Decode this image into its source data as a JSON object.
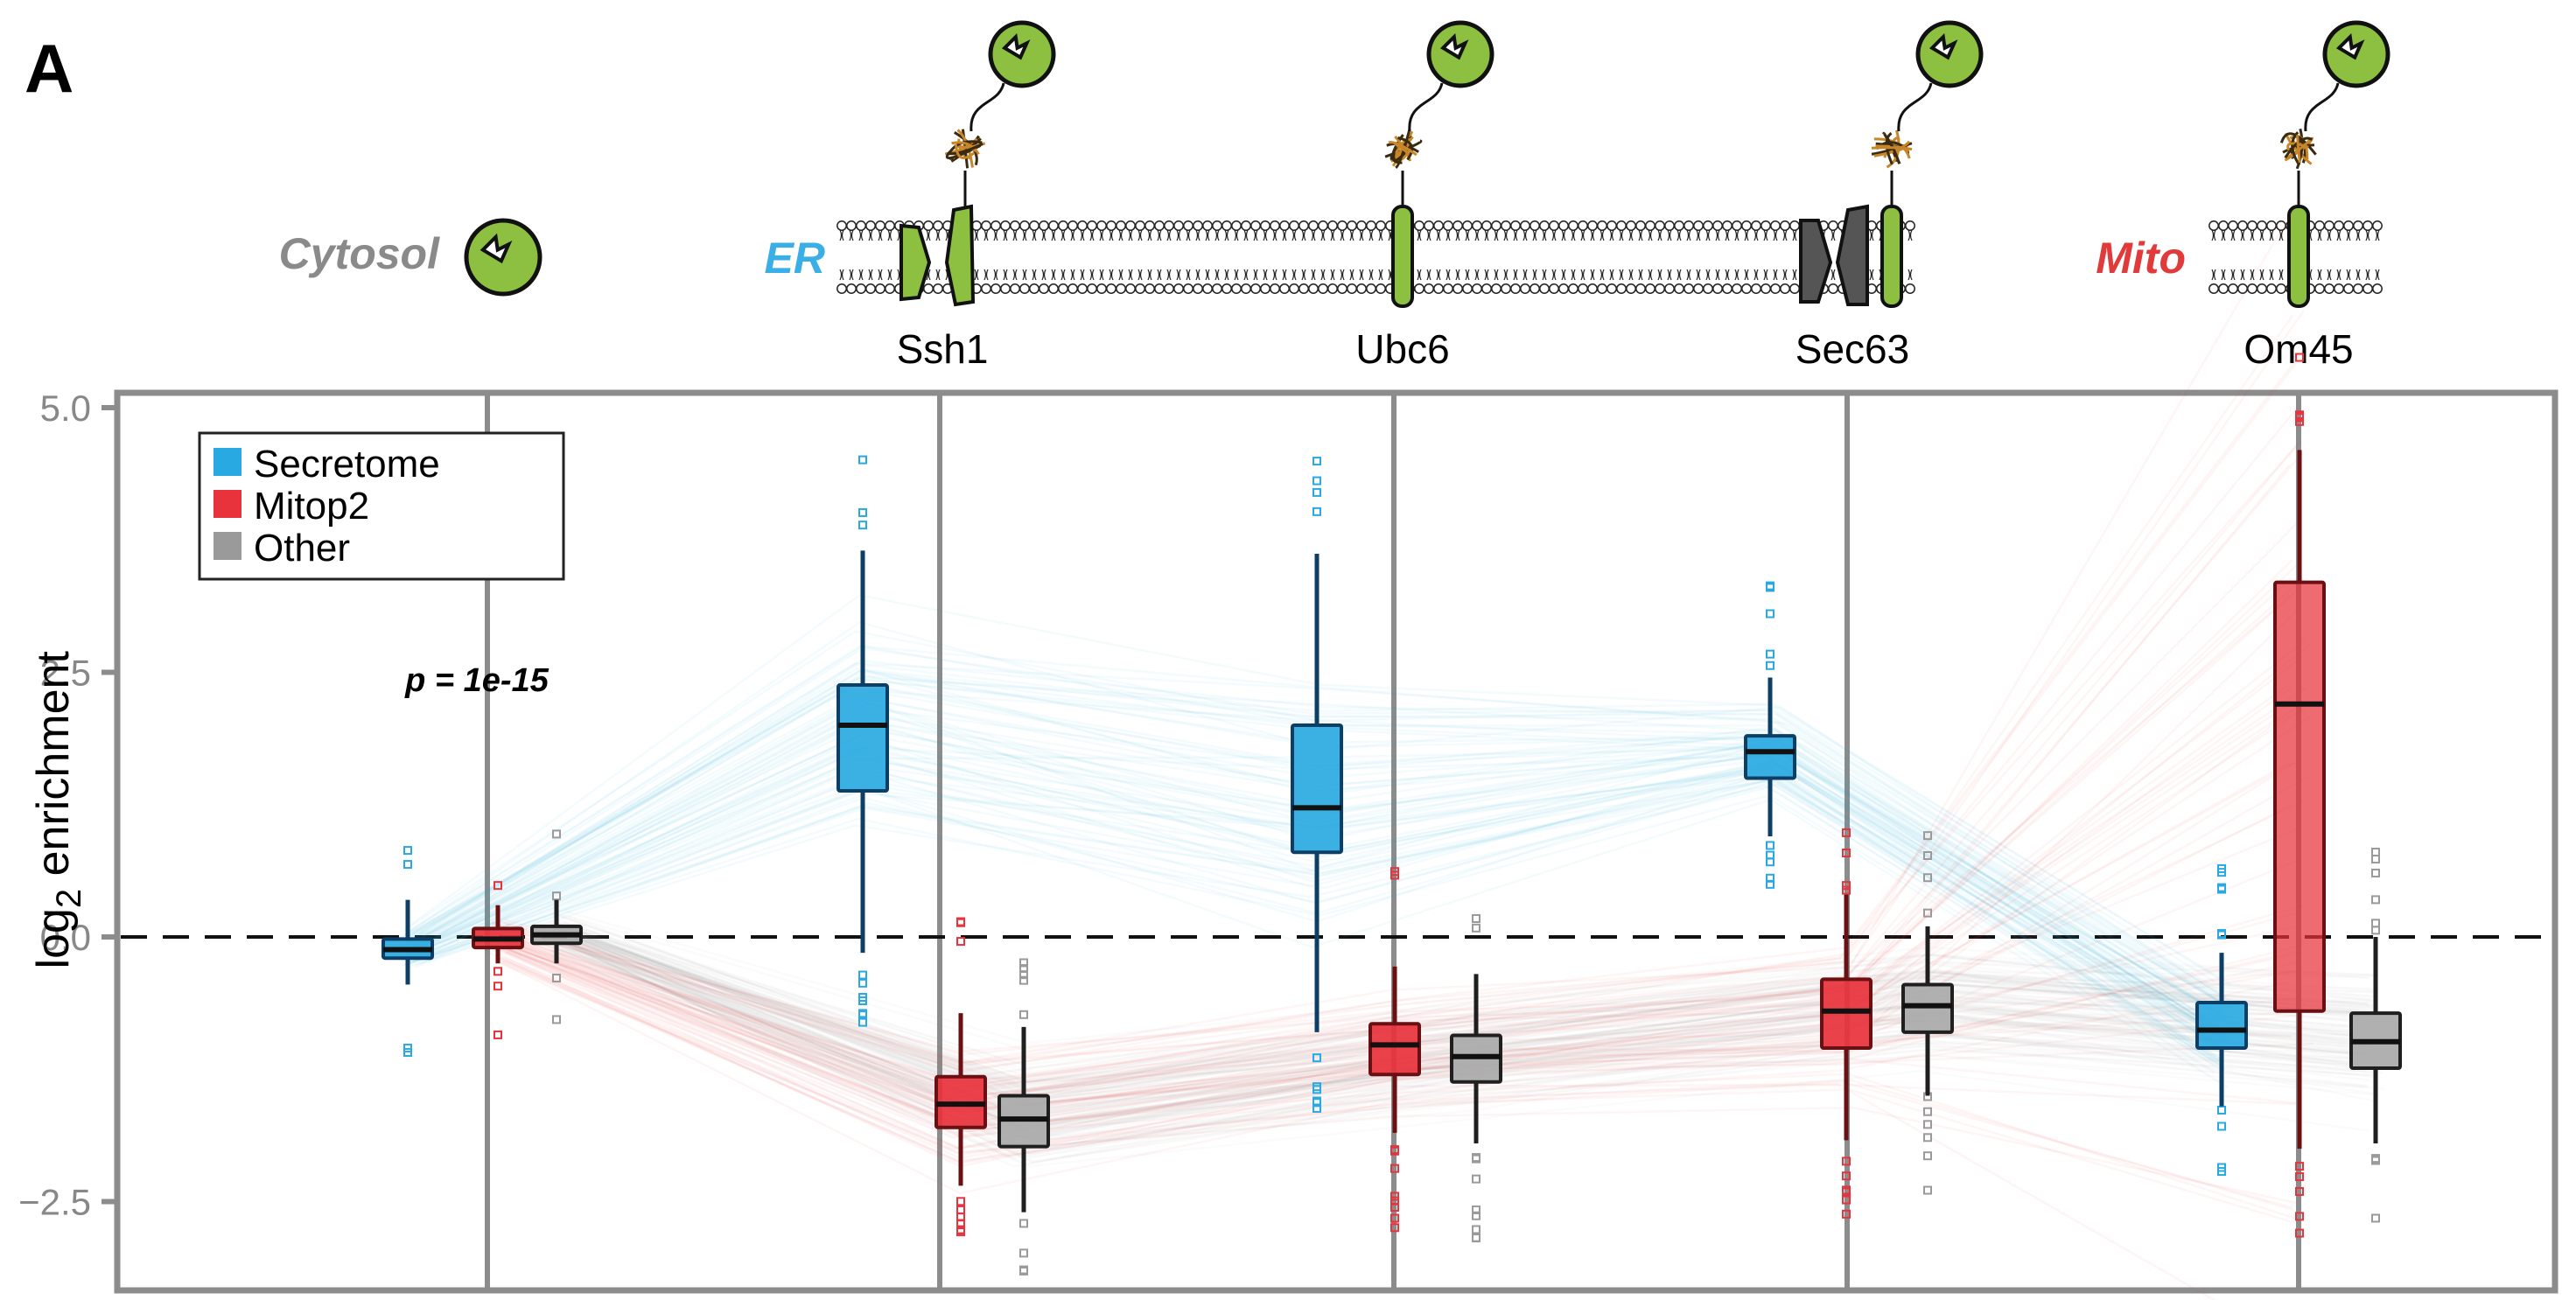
{
  "panel_label": "A",
  "compartments": [
    {
      "name": "Cytosol",
      "color": "#8a8a8a"
    },
    {
      "name": "ER",
      "color": "#3aaee6"
    },
    {
      "name": "Mito",
      "color": "#e03a3a"
    }
  ],
  "proteins": [
    "Ssh1",
    "Ubc6",
    "Sec63",
    "Om45"
  ],
  "colors": {
    "secretome": "#29a9e1",
    "mitop2": "#e8323c",
    "other": "#9a9a9a",
    "tm_green": "#8dc040",
    "tm_dark": "#555555",
    "biotin_ligase": "#8dc040"
  },
  "chart_data": {
    "type": "box",
    "ylabel_main": "log",
    "ylabel_sub": "2",
    "ylabel_rest": " enrichment",
    "ylim": [
      -3.4,
      5.0
    ],
    "yticks": [
      5.0,
      2.5,
      0.0,
      -2.5
    ],
    "ytick_labels": [
      "5.0",
      "2.5",
      "0.0",
      "−2.5"
    ],
    "baseline": 0.0,
    "positions": [
      "Cytosol",
      "Ssh1",
      "Ubc6",
      "Sec63",
      "Om45"
    ],
    "annotation": "p = 1e-15",
    "legend": {
      "placement": "top-left",
      "entries": [
        "Secretome",
        "Mitop2",
        "Other"
      ]
    },
    "series": [
      {
        "name": "Secretome",
        "color": "#29a9e1",
        "boxes": [
          {
            "position": "Cytosol",
            "whisker_low": -0.45,
            "q1": -0.2,
            "median": -0.12,
            "q3": -0.02,
            "whisker_high": 0.35
          },
          {
            "position": "Ssh1",
            "whisker_low": -0.15,
            "q1": 1.38,
            "median": 2.0,
            "q3": 2.38,
            "whisker_high": 3.65
          },
          {
            "position": "Ubc6",
            "whisker_low": -0.9,
            "q1": 0.8,
            "median": 1.22,
            "q3": 2.0,
            "whisker_high": 3.62
          },
          {
            "position": "Sec63",
            "whisker_low": 0.95,
            "q1": 1.5,
            "median": 1.75,
            "q3": 1.9,
            "whisker_high": 2.45
          },
          {
            "position": "Om45",
            "whisker_low": -1.6,
            "q1": -1.05,
            "median": -0.88,
            "q3": -0.62,
            "whisker_high": -0.15
          }
        ]
      },
      {
        "name": "Mitop2",
        "color": "#e8323c",
        "boxes": [
          {
            "position": "Cytosol",
            "whisker_low": -0.25,
            "q1": -0.1,
            "median": -0.02,
            "q3": 0.08,
            "whisker_high": 0.3
          },
          {
            "position": "Ssh1",
            "whisker_low": -2.35,
            "q1": -1.8,
            "median": -1.58,
            "q3": -1.32,
            "whisker_high": -0.72
          },
          {
            "position": "Ubc6",
            "whisker_low": -1.85,
            "q1": -1.3,
            "median": -1.02,
            "q3": -0.82,
            "whisker_high": -0.28
          },
          {
            "position": "Sec63",
            "whisker_low": -1.92,
            "q1": -1.05,
            "median": -0.7,
            "q3": -0.4,
            "whisker_high": 0.4
          },
          {
            "position": "Om45",
            "whisker_low": -2.0,
            "q1": -0.7,
            "median": 2.2,
            "q3": 3.35,
            "whisker_high": 4.6
          }
        ]
      },
      {
        "name": "Other",
        "color": "#9a9a9a",
        "boxes": [
          {
            "position": "Cytosol",
            "whisker_low": -0.25,
            "q1": -0.06,
            "median": 0.02,
            "q3": 0.1,
            "whisker_high": 0.35
          },
          {
            "position": "Ssh1",
            "whisker_low": -2.6,
            "q1": -1.98,
            "median": -1.72,
            "q3": -1.5,
            "whisker_high": -0.85
          },
          {
            "position": "Ubc6",
            "whisker_low": -1.95,
            "q1": -1.37,
            "median": -1.13,
            "q3": -0.93,
            "whisker_high": -0.35
          },
          {
            "position": "Sec63",
            "whisker_low": -1.5,
            "q1": -0.9,
            "median": -0.65,
            "q3": -0.45,
            "whisker_high": 0.1
          },
          {
            "position": "Om45",
            "whisker_low": -1.95,
            "q1": -1.24,
            "median": -0.99,
            "q3": -0.72,
            "whisker_high": 0.0
          }
        ]
      }
    ]
  }
}
